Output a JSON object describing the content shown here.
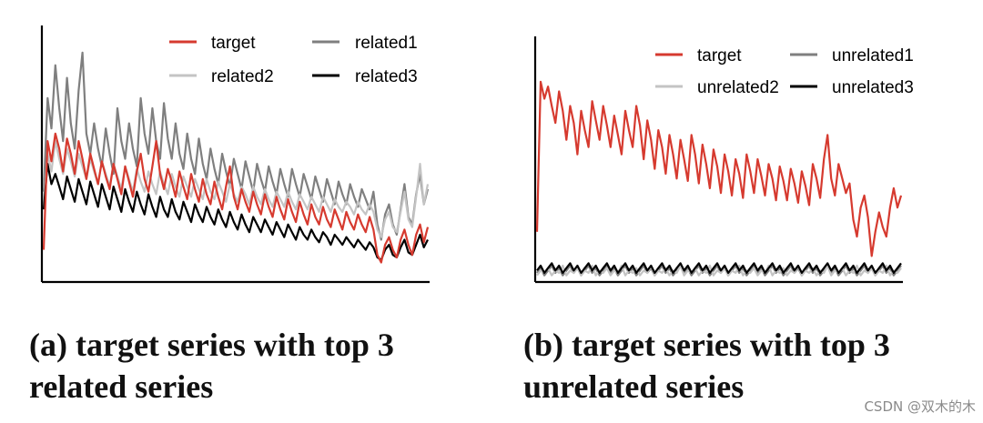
{
  "captions": {
    "a_line1": "(a) target series with top 3",
    "a_line2": "related series",
    "b_line1": "(b) target series with top 3",
    "b_line2": "unrelated series"
  },
  "watermark": "CSDN @双木的木",
  "chart_data": [
    {
      "type": "line",
      "title": "",
      "xlabel": "",
      "ylabel": "",
      "grid": false,
      "legend_position": "top-right",
      "ylim": [
        0,
        1
      ],
      "x_count": 100,
      "series": [
        {
          "name": "target",
          "color": "#d63a2f",
          "values": [
            0.12,
            0.55,
            0.47,
            0.58,
            0.52,
            0.43,
            0.56,
            0.5,
            0.42,
            0.55,
            0.48,
            0.4,
            0.5,
            0.44,
            0.38,
            0.47,
            0.41,
            0.36,
            0.46,
            0.4,
            0.34,
            0.45,
            0.39,
            0.33,
            0.43,
            0.5,
            0.4,
            0.35,
            0.45,
            0.55,
            0.42,
            0.36,
            0.44,
            0.39,
            0.33,
            0.43,
            0.37,
            0.32,
            0.42,
            0.36,
            0.31,
            0.4,
            0.34,
            0.3,
            0.39,
            0.33,
            0.28,
            0.37,
            0.45,
            0.33,
            0.28,
            0.36,
            0.31,
            0.27,
            0.35,
            0.3,
            0.26,
            0.34,
            0.29,
            0.25,
            0.33,
            0.28,
            0.24,
            0.32,
            0.27,
            0.23,
            0.31,
            0.26,
            0.22,
            0.3,
            0.25,
            0.22,
            0.29,
            0.24,
            0.21,
            0.28,
            0.24,
            0.2,
            0.27,
            0.23,
            0.2,
            0.26,
            0.22,
            0.19,
            0.25,
            0.2,
            0.1,
            0.07,
            0.14,
            0.17,
            0.12,
            0.09,
            0.16,
            0.2,
            0.14,
            0.1,
            0.18,
            0.22,
            0.15,
            0.21
          ]
        },
        {
          "name": "related1",
          "color": "#7f7f7f",
          "values": [
            0.35,
            0.72,
            0.6,
            0.85,
            0.68,
            0.55,
            0.8,
            0.62,
            0.52,
            0.75,
            0.9,
            0.58,
            0.5,
            0.62,
            0.52,
            0.45,
            0.6,
            0.5,
            0.42,
            0.68,
            0.55,
            0.48,
            0.62,
            0.52,
            0.45,
            0.72,
            0.58,
            0.5,
            0.68,
            0.55,
            0.48,
            0.7,
            0.56,
            0.48,
            0.62,
            0.5,
            0.44,
            0.58,
            0.48,
            0.42,
            0.56,
            0.46,
            0.4,
            0.52,
            0.44,
            0.38,
            0.5,
            0.43,
            0.37,
            0.48,
            0.42,
            0.36,
            0.47,
            0.41,
            0.35,
            0.46,
            0.4,
            0.35,
            0.45,
            0.39,
            0.34,
            0.44,
            0.38,
            0.33,
            0.44,
            0.38,
            0.33,
            0.42,
            0.37,
            0.32,
            0.41,
            0.36,
            0.31,
            0.4,
            0.35,
            0.3,
            0.39,
            0.34,
            0.3,
            0.38,
            0.33,
            0.29,
            0.36,
            0.32,
            0.28,
            0.35,
            0.22,
            0.16,
            0.26,
            0.3,
            0.22,
            0.18,
            0.28,
            0.38,
            0.25,
            0.22,
            0.34,
            0.42,
            0.3,
            0.36
          ]
        },
        {
          "name": "related2",
          "color": "#c4c4c4",
          "values": [
            0.3,
            0.5,
            0.43,
            0.55,
            0.48,
            0.42,
            0.52,
            0.47,
            0.41,
            0.5,
            0.45,
            0.4,
            0.48,
            0.43,
            0.38,
            0.47,
            0.42,
            0.37,
            0.46,
            0.41,
            0.36,
            0.45,
            0.4,
            0.35,
            0.44,
            0.39,
            0.35,
            0.43,
            0.38,
            0.34,
            0.43,
            0.38,
            0.34,
            0.42,
            0.37,
            0.33,
            0.41,
            0.37,
            0.33,
            0.4,
            0.36,
            0.32,
            0.4,
            0.35,
            0.32,
            0.39,
            0.35,
            0.31,
            0.38,
            0.34,
            0.31,
            0.37,
            0.34,
            0.3,
            0.37,
            0.33,
            0.3,
            0.36,
            0.32,
            0.29,
            0.35,
            0.32,
            0.29,
            0.35,
            0.31,
            0.28,
            0.34,
            0.31,
            0.28,
            0.33,
            0.3,
            0.27,
            0.33,
            0.3,
            0.27,
            0.32,
            0.29,
            0.27,
            0.31,
            0.29,
            0.26,
            0.31,
            0.28,
            0.26,
            0.3,
            0.27,
            0.2,
            0.17,
            0.24,
            0.27,
            0.21,
            0.19,
            0.27,
            0.35,
            0.24,
            0.21,
            0.33,
            0.46,
            0.3,
            0.38
          ]
        },
        {
          "name": "related3",
          "color": "#000000",
          "values": [
            0.28,
            0.46,
            0.38,
            0.42,
            0.37,
            0.32,
            0.41,
            0.36,
            0.31,
            0.4,
            0.35,
            0.3,
            0.39,
            0.34,
            0.29,
            0.38,
            0.33,
            0.28,
            0.37,
            0.32,
            0.27,
            0.36,
            0.31,
            0.27,
            0.35,
            0.3,
            0.26,
            0.34,
            0.29,
            0.25,
            0.33,
            0.28,
            0.25,
            0.32,
            0.27,
            0.24,
            0.31,
            0.27,
            0.23,
            0.3,
            0.26,
            0.23,
            0.29,
            0.25,
            0.22,
            0.28,
            0.24,
            0.21,
            0.27,
            0.23,
            0.2,
            0.26,
            0.22,
            0.19,
            0.25,
            0.22,
            0.19,
            0.24,
            0.21,
            0.18,
            0.23,
            0.2,
            0.17,
            0.22,
            0.19,
            0.16,
            0.21,
            0.18,
            0.16,
            0.2,
            0.17,
            0.15,
            0.19,
            0.17,
            0.14,
            0.18,
            0.16,
            0.14,
            0.17,
            0.15,
            0.13,
            0.16,
            0.14,
            0.12,
            0.15,
            0.13,
            0.09,
            0.08,
            0.12,
            0.14,
            0.1,
            0.09,
            0.13,
            0.16,
            0.11,
            0.1,
            0.14,
            0.18,
            0.13,
            0.16
          ]
        }
      ]
    },
    {
      "type": "line",
      "title": "",
      "xlabel": "",
      "ylabel": "",
      "grid": false,
      "legend_position": "top-right",
      "ylim": [
        0,
        1
      ],
      "x_count": 100,
      "series": [
        {
          "name": "target",
          "color": "#d63a2f",
          "values": [
            0.2,
            0.82,
            0.75,
            0.8,
            0.72,
            0.65,
            0.78,
            0.7,
            0.58,
            0.72,
            0.65,
            0.52,
            0.7,
            0.62,
            0.55,
            0.74,
            0.66,
            0.58,
            0.72,
            0.64,
            0.55,
            0.68,
            0.6,
            0.52,
            0.7,
            0.62,
            0.55,
            0.72,
            0.64,
            0.5,
            0.66,
            0.58,
            0.46,
            0.62,
            0.55,
            0.44,
            0.6,
            0.52,
            0.42,
            0.58,
            0.5,
            0.41,
            0.6,
            0.52,
            0.4,
            0.56,
            0.48,
            0.38,
            0.54,
            0.47,
            0.36,
            0.52,
            0.45,
            0.35,
            0.5,
            0.44,
            0.34,
            0.52,
            0.45,
            0.36,
            0.5,
            0.43,
            0.35,
            0.48,
            0.42,
            0.33,
            0.47,
            0.41,
            0.33,
            0.46,
            0.4,
            0.32,
            0.45,
            0.39,
            0.31,
            0.48,
            0.42,
            0.34,
            0.5,
            0.6,
            0.42,
            0.35,
            0.48,
            0.42,
            0.36,
            0.4,
            0.25,
            0.18,
            0.3,
            0.35,
            0.26,
            0.1,
            0.2,
            0.28,
            0.22,
            0.18,
            0.3,
            0.38,
            0.3,
            0.35
          ]
        },
        {
          "name": "unrelated1",
          "color": "#7f7f7f",
          "values": [
            0.03,
            0.05,
            0.02,
            0.04,
            0.06,
            0.03,
            0.05,
            0.02,
            0.04,
            0.06,
            0.03,
            0.05,
            0.02,
            0.04,
            0.06,
            0.03,
            0.05,
            0.02,
            0.04,
            0.06,
            0.03,
            0.05,
            0.02,
            0.04,
            0.06,
            0.03,
            0.05,
            0.02,
            0.04,
            0.06,
            0.03,
            0.05,
            0.02,
            0.04,
            0.06,
            0.03,
            0.05,
            0.02,
            0.04,
            0.06,
            0.03,
            0.05,
            0.02,
            0.04,
            0.06,
            0.03,
            0.05,
            0.02,
            0.04,
            0.06,
            0.03,
            0.05,
            0.02,
            0.04,
            0.06,
            0.03,
            0.05,
            0.02,
            0.04,
            0.06,
            0.03,
            0.05,
            0.02,
            0.04,
            0.06,
            0.03,
            0.05,
            0.02,
            0.04,
            0.06,
            0.03,
            0.05,
            0.02,
            0.04,
            0.06,
            0.03,
            0.05,
            0.02,
            0.04,
            0.06,
            0.03,
            0.05,
            0.02,
            0.04,
            0.06,
            0.03,
            0.05,
            0.02,
            0.04,
            0.06,
            0.03,
            0.05,
            0.02,
            0.04,
            0.06,
            0.03,
            0.05,
            0.02,
            0.04,
            0.06
          ]
        },
        {
          "name": "unrelated2",
          "color": "#c4c4c4",
          "values": [
            0.02,
            0.04,
            0.03,
            0.05,
            0.02,
            0.04,
            0.03,
            0.06,
            0.02,
            0.04,
            0.03,
            0.05,
            0.02,
            0.04,
            0.03,
            0.06,
            0.02,
            0.04,
            0.03,
            0.05,
            0.02,
            0.04,
            0.03,
            0.06,
            0.02,
            0.04,
            0.03,
            0.05,
            0.02,
            0.04,
            0.03,
            0.06,
            0.02,
            0.04,
            0.03,
            0.05,
            0.02,
            0.04,
            0.03,
            0.06,
            0.02,
            0.04,
            0.03,
            0.05,
            0.02,
            0.04,
            0.03,
            0.06,
            0.02,
            0.04,
            0.03,
            0.05,
            0.02,
            0.04,
            0.03,
            0.06,
            0.02,
            0.04,
            0.03,
            0.05,
            0.02,
            0.04,
            0.03,
            0.06,
            0.02,
            0.04,
            0.03,
            0.05,
            0.02,
            0.04,
            0.03,
            0.06,
            0.02,
            0.04,
            0.03,
            0.05,
            0.02,
            0.04,
            0.03,
            0.06,
            0.02,
            0.04,
            0.03,
            0.05,
            0.02,
            0.04,
            0.03,
            0.06,
            0.02,
            0.04,
            0.03,
            0.05,
            0.02,
            0.04,
            0.03,
            0.06,
            0.02,
            0.04,
            0.03,
            0.05
          ]
        },
        {
          "name": "unrelated3",
          "color": "#000000",
          "values": [
            0.04,
            0.06,
            0.03,
            0.05,
            0.07,
            0.04,
            0.06,
            0.03,
            0.05,
            0.07,
            0.04,
            0.06,
            0.03,
            0.05,
            0.07,
            0.04,
            0.06,
            0.03,
            0.05,
            0.07,
            0.04,
            0.06,
            0.03,
            0.05,
            0.07,
            0.04,
            0.06,
            0.03,
            0.05,
            0.07,
            0.04,
            0.06,
            0.03,
            0.05,
            0.07,
            0.04,
            0.06,
            0.03,
            0.05,
            0.07,
            0.04,
            0.06,
            0.03,
            0.05,
            0.07,
            0.04,
            0.06,
            0.03,
            0.05,
            0.07,
            0.04,
            0.06,
            0.03,
            0.05,
            0.07,
            0.04,
            0.06,
            0.03,
            0.05,
            0.07,
            0.04,
            0.06,
            0.03,
            0.05,
            0.07,
            0.04,
            0.06,
            0.03,
            0.05,
            0.07,
            0.04,
            0.06,
            0.03,
            0.05,
            0.07,
            0.04,
            0.06,
            0.03,
            0.05,
            0.07,
            0.04,
            0.06,
            0.03,
            0.05,
            0.07,
            0.04,
            0.06,
            0.03,
            0.05,
            0.07,
            0.04,
            0.06,
            0.03,
            0.05,
            0.07,
            0.04,
            0.06,
            0.03,
            0.05,
            0.07
          ]
        }
      ]
    }
  ]
}
